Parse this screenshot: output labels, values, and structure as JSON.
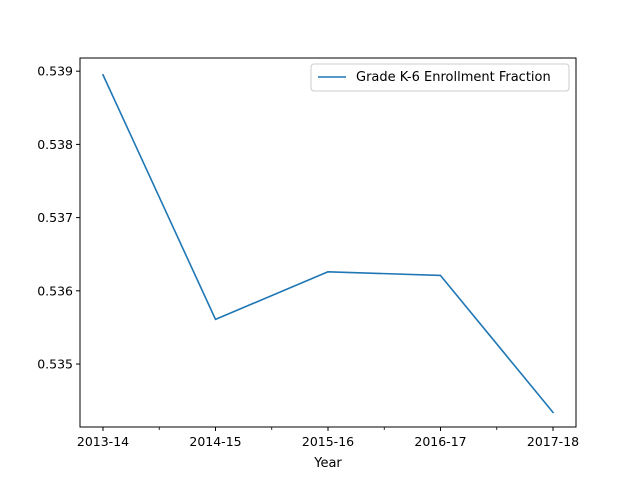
{
  "chart_data": {
    "type": "line",
    "title": "",
    "xlabel": "Year",
    "ylabel": "",
    "categories": [
      "2013-14",
      "2014-15",
      "2015-16",
      "2016-17",
      "2017-18"
    ],
    "series": [
      {
        "name": "Grade K-6 Enrollment Fraction",
        "values": [
          0.53895,
          0.53561,
          0.53626,
          0.53621,
          0.53434
        ],
        "color": "#1f77b4"
      }
    ],
    "ylim": [
      0.53414,
      0.53918
    ],
    "yticks": [
      0.535,
      0.536,
      0.537,
      0.538,
      0.539
    ],
    "ytick_labels": [
      "0.535",
      "0.536",
      "0.537",
      "0.538",
      "0.539"
    ],
    "legend_position": "upper right",
    "grid": false
  }
}
